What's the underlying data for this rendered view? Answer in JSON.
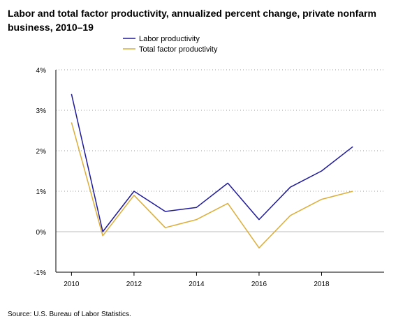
{
  "chart_data": {
    "type": "line",
    "title": "Labor and total factor productivity, annualized percent change, private nonfarm business, 2010–19",
    "xlabel": "",
    "ylabel": "",
    "x": [
      2010,
      2011,
      2012,
      2013,
      2014,
      2015,
      2016,
      2017,
      2018,
      2019
    ],
    "x_ticks": [
      2010,
      2012,
      2014,
      2016,
      2018
    ],
    "xlim": [
      2009.5,
      2020.0
    ],
    "ylim": [
      -1,
      4
    ],
    "y_ticks": [
      -1,
      0,
      1,
      2,
      3,
      4
    ],
    "y_tick_format": "percent",
    "grid": "horizontal-dotted",
    "legend_position": "top-center",
    "series": [
      {
        "name": "Labor productivity",
        "color": "#1f1a99",
        "values": [
          3.4,
          0.0,
          1.0,
          0.5,
          0.6,
          1.2,
          0.3,
          1.1,
          1.5,
          2.1
        ]
      },
      {
        "name": "Total factor productivity",
        "color": "#dcae3a",
        "values": [
          2.7,
          -0.1,
          0.9,
          0.1,
          0.3,
          0.7,
          -0.4,
          0.4,
          0.8,
          1.0
        ]
      }
    ],
    "source": "Source: U.S. Bureau of Labor Statistics."
  }
}
